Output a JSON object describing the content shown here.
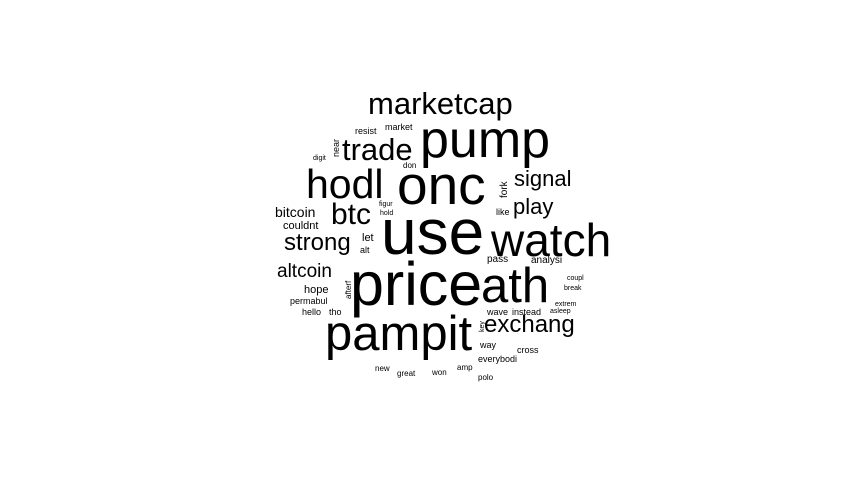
{
  "word_cloud": {
    "words": [
      {
        "id": "marketcap",
        "text": "marketcap"
      },
      {
        "id": "pump",
        "text": "pump"
      },
      {
        "id": "trade",
        "text": "trade"
      },
      {
        "id": "hodl",
        "text": "hodl"
      },
      {
        "id": "onc",
        "text": "onc"
      },
      {
        "id": "signal",
        "text": "signal"
      },
      {
        "id": "btc",
        "text": "btc"
      },
      {
        "id": "play",
        "text": "play"
      },
      {
        "id": "use",
        "text": "use"
      },
      {
        "id": "watch",
        "text": "watch"
      },
      {
        "id": "bitcoin",
        "text": "bitcoin"
      },
      {
        "id": "couldnt",
        "text": "couldnt"
      },
      {
        "id": "strong",
        "text": "strong"
      },
      {
        "id": "let",
        "text": "let"
      },
      {
        "id": "alt",
        "text": "alt"
      },
      {
        "id": "altcoin",
        "text": "altcoin"
      },
      {
        "id": "price",
        "text": "price"
      },
      {
        "id": "ath",
        "text": "ath"
      },
      {
        "id": "pass",
        "text": "pass"
      },
      {
        "id": "analysi",
        "text": "analysi"
      },
      {
        "id": "hope",
        "text": "hope"
      },
      {
        "id": "permabul",
        "text": "permabul"
      },
      {
        "id": "hello",
        "text": "hello"
      },
      {
        "id": "tho",
        "text": "tho"
      },
      {
        "id": "pampit",
        "text": "pampit"
      },
      {
        "id": "exchang",
        "text": "exchang"
      },
      {
        "id": "wave",
        "text": "wave"
      },
      {
        "id": "instead",
        "text": "instead"
      },
      {
        "id": "way",
        "text": "way"
      },
      {
        "id": "cross",
        "text": "cross"
      },
      {
        "id": "everybodi",
        "text": "everybodi"
      },
      {
        "id": "resist",
        "text": "resist"
      },
      {
        "id": "market",
        "text": "market"
      },
      {
        "id": "don",
        "text": "don"
      },
      {
        "id": "digit",
        "text": "digit"
      },
      {
        "id": "figur",
        "text": "figur"
      },
      {
        "id": "hold",
        "text": "hold"
      },
      {
        "id": "like",
        "text": "like"
      },
      {
        "id": "coupl",
        "text": "coupl"
      },
      {
        "id": "break",
        "text": "break"
      },
      {
        "id": "extrem",
        "text": "extrem"
      },
      {
        "id": "asleep",
        "text": "asleep"
      },
      {
        "id": "new",
        "text": "new"
      },
      {
        "id": "great",
        "text": "great"
      },
      {
        "id": "won",
        "text": "won"
      },
      {
        "id": "amp",
        "text": "amp"
      },
      {
        "id": "polo",
        "text": "polo"
      },
      {
        "id": "near",
        "text": "near"
      },
      {
        "id": "fork",
        "text": "fork"
      },
      {
        "id": "afterf",
        "text": "afterf"
      },
      {
        "id": "key",
        "text": "key"
      }
    ]
  }
}
